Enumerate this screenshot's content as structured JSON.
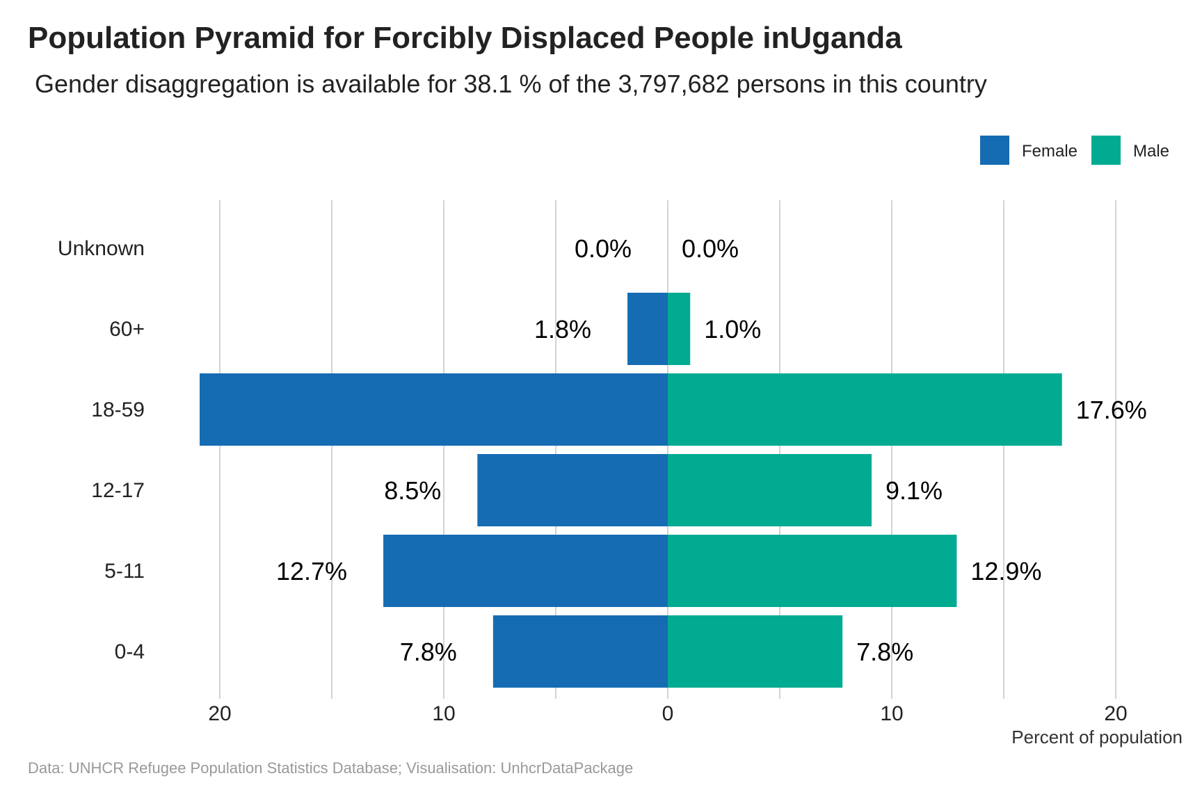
{
  "chart_data": {
    "type": "bar",
    "orientation": "horizontal",
    "title": "Population Pyramid for Forcibly Displaced People inUganda",
    "subtitle": "Gender disaggregation is available for 38.1 % of the 3,797,682 persons in this country",
    "caption": "Data: UNHCR Refugee Population Statistics Database; Visualisation: UnhcrDataPackage",
    "xlabel": "Percent of population",
    "ylabel": "",
    "categories": [
      "Unknown",
      "60+",
      "18-59",
      "12-17",
      "5-11",
      "0-4"
    ],
    "series": [
      {
        "name": "Female",
        "color": "#156CB3",
        "values": [
          0.0,
          1.8,
          20.9,
          8.5,
          12.7,
          7.8
        ],
        "labels": [
          "0.0%",
          "1.8%",
          "",
          "8.5%",
          "12.7%",
          "7.8%"
        ]
      },
      {
        "name": "Male",
        "color": "#00AB92",
        "values": [
          0.0,
          1.0,
          17.6,
          9.1,
          12.9,
          7.8
        ],
        "labels": [
          "0.0%",
          "1.0%",
          "17.6%",
          "9.1%",
          "12.9%",
          "7.8%"
        ]
      }
    ],
    "xlim": [
      -20,
      20
    ],
    "x_ticks": [
      -20,
      -10,
      0,
      10,
      20
    ],
    "x_tick_labels": [
      "20",
      "10",
      "0",
      "10",
      "20"
    ],
    "grid": true,
    "legend_position": "top-right"
  }
}
